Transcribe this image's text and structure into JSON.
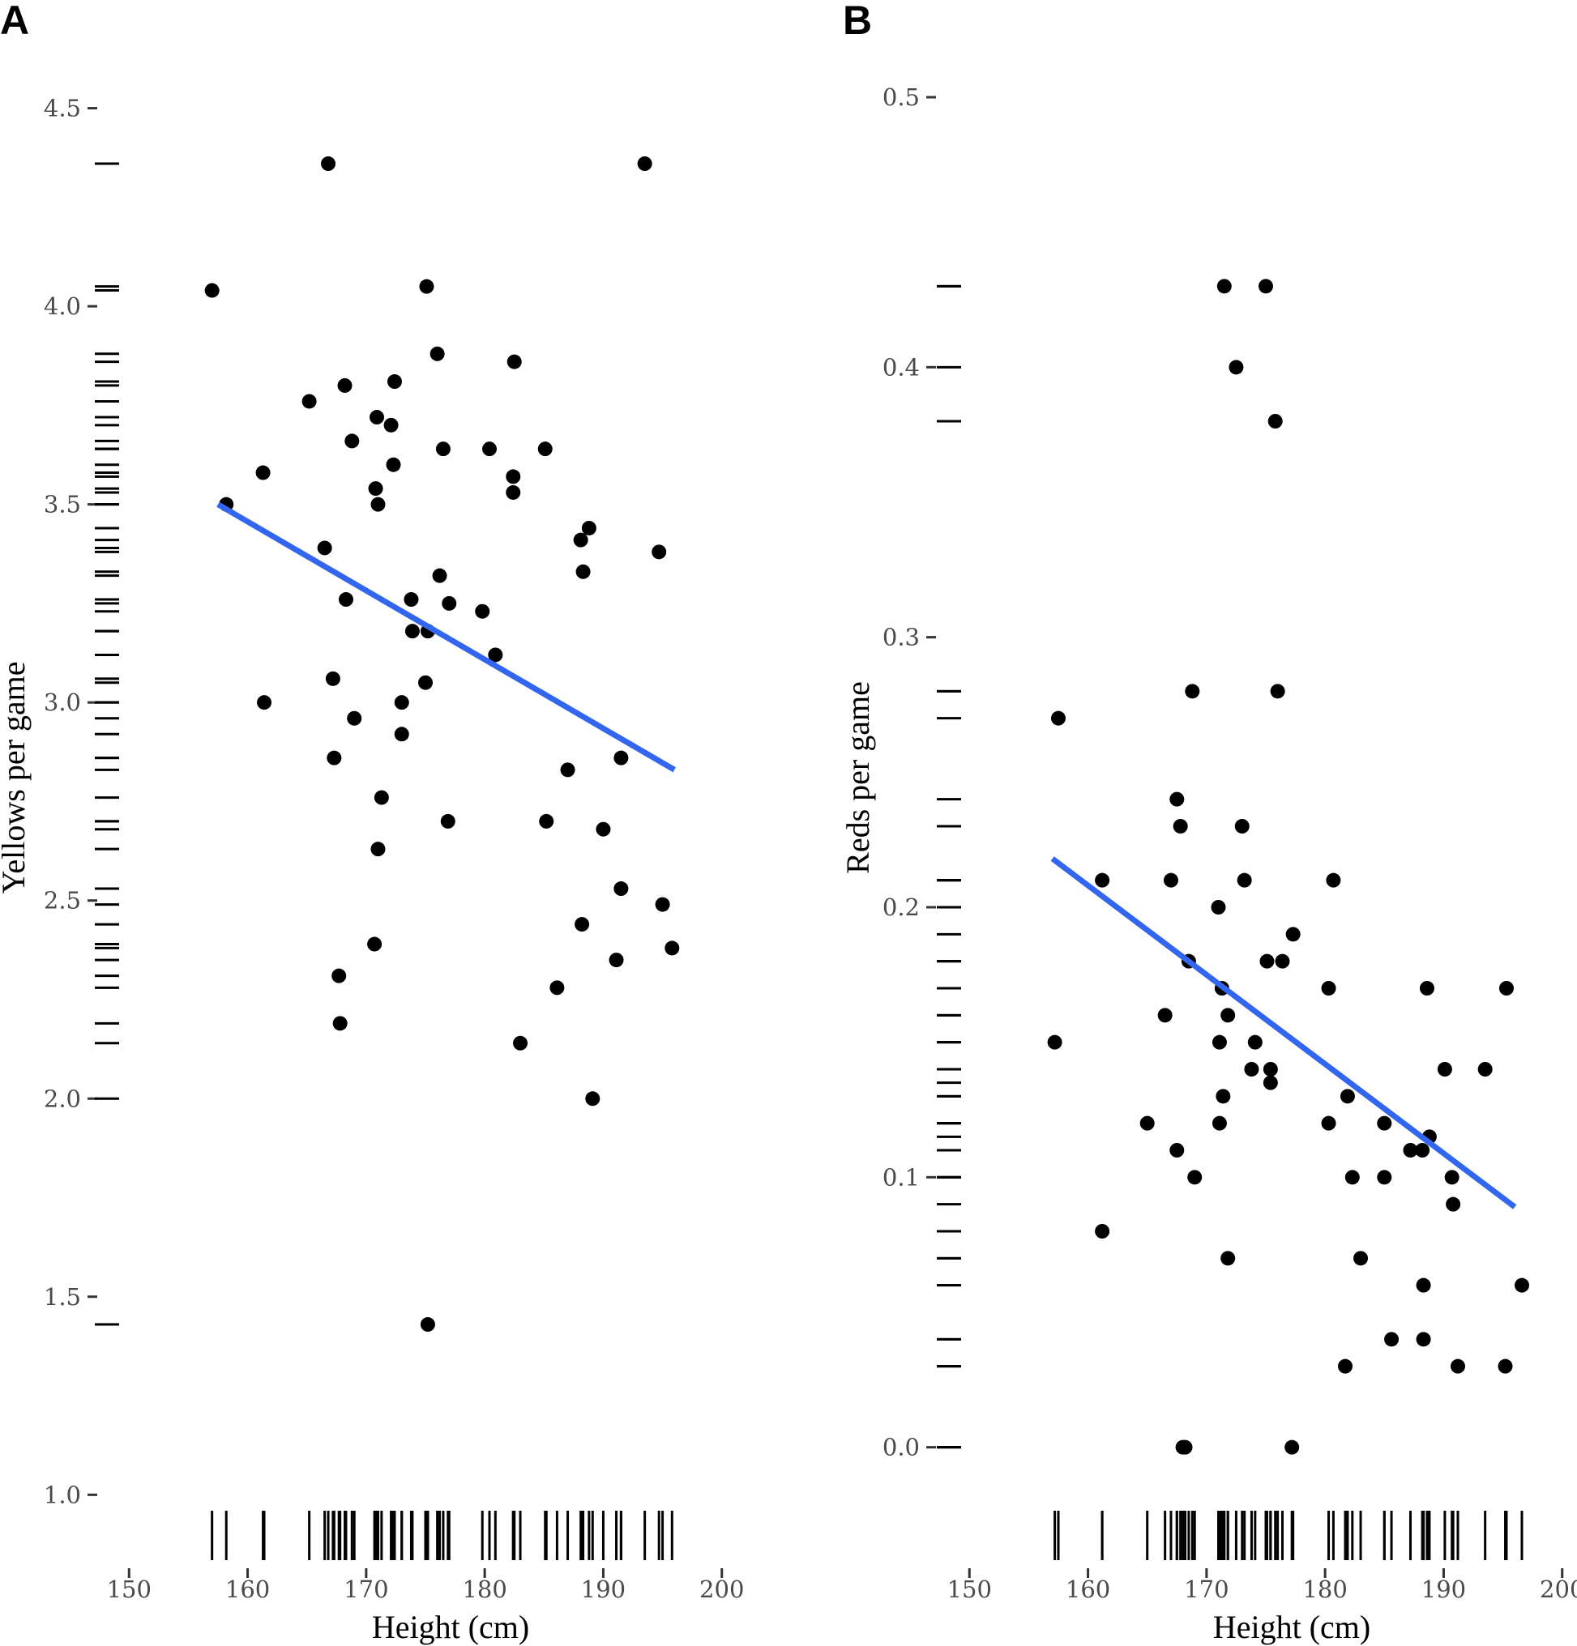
{
  "chart_data": [
    {
      "panel": "A",
      "type": "scatter",
      "xlabel": "Height (cm)",
      "ylabel": "Yellows per game",
      "xlim": [
        148,
        202
      ],
      "ylim": [
        0.97,
        4.63
      ],
      "xticks": [
        150,
        160,
        170,
        180,
        190,
        200
      ],
      "yticks": [
        1.0,
        1.5,
        2.0,
        2.5,
        3.0,
        3.5,
        4.0,
        4.5
      ],
      "xtick_labels": [
        "150",
        "160",
        "170",
        "180",
        "190",
        "200"
      ],
      "ytick_labels": [
        "1.0",
        "1.5",
        "2.0",
        "2.5",
        "3.0",
        "3.5",
        "4.0",
        "4.5"
      ],
      "grid": false,
      "rug": true,
      "points": [
        [
          157,
          4.04
        ],
        [
          158.2,
          3.5
        ],
        [
          161.3,
          3.58
        ],
        [
          161.4,
          3.0
        ],
        [
          165.2,
          3.76
        ],
        [
          166.5,
          3.39
        ],
        [
          166.8,
          4.36
        ],
        [
          167.2,
          3.06
        ],
        [
          167.3,
          2.86
        ],
        [
          167.7,
          2.31
        ],
        [
          167.8,
          2.19
        ],
        [
          168.2,
          3.8
        ],
        [
          168.3,
          3.26
        ],
        [
          168.8,
          3.66
        ],
        [
          169,
          2.96
        ],
        [
          170.7,
          2.39
        ],
        [
          170.8,
          3.54
        ],
        [
          170.9,
          3.72
        ],
        [
          171,
          3.5
        ],
        [
          171,
          2.63
        ],
        [
          171.3,
          2.76
        ],
        [
          172.1,
          3.7
        ],
        [
          172.3,
          3.6
        ],
        [
          172.4,
          3.81
        ],
        [
          173,
          3.0
        ],
        [
          173,
          2.92
        ],
        [
          173.8,
          3.26
        ],
        [
          173.9,
          3.18
        ],
        [
          175,
          3.05
        ],
        [
          175.1,
          4.05
        ],
        [
          175.2,
          3.18
        ],
        [
          175.2,
          1.43
        ],
        [
          176,
          3.88
        ],
        [
          176.2,
          3.32
        ],
        [
          176.5,
          3.64
        ],
        [
          177,
          3.25
        ],
        [
          176.9,
          2.7
        ],
        [
          179.8,
          3.23
        ],
        [
          180.4,
          3.64
        ],
        [
          180.9,
          3.12
        ],
        [
          182.4,
          3.57
        ],
        [
          182.4,
          3.53
        ],
        [
          182.5,
          3.86
        ],
        [
          183,
          2.14
        ],
        [
          185.1,
          3.64
        ],
        [
          185.2,
          2.7
        ],
        [
          186.1,
          2.28
        ],
        [
          187,
          2.83
        ],
        [
          188.1,
          3.41
        ],
        [
          188.2,
          2.44
        ],
        [
          188.3,
          3.33
        ],
        [
          188.8,
          3.44
        ],
        [
          189.1,
          2.0
        ],
        [
          190,
          2.68
        ],
        [
          191.1,
          2.35
        ],
        [
          191.5,
          2.86
        ],
        [
          191.5,
          2.53
        ],
        [
          193.5,
          4.36
        ],
        [
          194.7,
          3.38
        ],
        [
          195,
          2.49
        ],
        [
          195.8,
          2.38
        ]
      ],
      "fit_line": {
        "x": [
          157.5,
          196
        ],
        "y": [
          3.5,
          2.83
        ],
        "color": "#3366ee"
      }
    },
    {
      "panel": "B",
      "type": "scatter",
      "xlabel": "Height (cm)",
      "ylabel": "Reds per game",
      "xlim": [
        148,
        202
      ],
      "ylim": [
        -0.022,
        0.515
      ],
      "xticks": [
        150,
        160,
        170,
        180,
        190,
        200
      ],
      "yticks": [
        0.0,
        0.1,
        0.2,
        0.3,
        0.4,
        0.5
      ],
      "xtick_labels": [
        "150",
        "160",
        "170",
        "180",
        "190",
        "200"
      ],
      "ytick_labels": [
        "0.0",
        "0.1",
        "0.2",
        "0.3",
        "0.4",
        "0.5"
      ],
      "grid": false,
      "rug": true,
      "points": [
        [
          157.2,
          0.15
        ],
        [
          157.5,
          0.27
        ],
        [
          161.2,
          0.21
        ],
        [
          161.2,
          0.08
        ],
        [
          165,
          0.12
        ],
        [
          166.5,
          0.16
        ],
        [
          167,
          0.21
        ],
        [
          167.5,
          0.24
        ],
        [
          167.5,
          0.11
        ],
        [
          167.8,
          0.23
        ],
        [
          168,
          0.0
        ],
        [
          168.2,
          0.0
        ],
        [
          168.5,
          0.18
        ],
        [
          168.8,
          0.28
        ],
        [
          169,
          0.1
        ],
        [
          171,
          0.2
        ],
        [
          171.1,
          0.15
        ],
        [
          171.1,
          0.12
        ],
        [
          171.3,
          0.17
        ],
        [
          171.4,
          0.13
        ],
        [
          171.5,
          0.43
        ],
        [
          171.8,
          0.07
        ],
        [
          171.8,
          0.16
        ],
        [
          172.5,
          0.4
        ],
        [
          173,
          0.23
        ],
        [
          173.2,
          0.21
        ],
        [
          173.8,
          0.14
        ],
        [
          174.1,
          0.15
        ],
        [
          175,
          0.43
        ],
        [
          175.1,
          0.18
        ],
        [
          175.4,
          0.14
        ],
        [
          175.4,
          0.135
        ],
        [
          175.8,
          0.38
        ],
        [
          176,
          0.28
        ],
        [
          176.4,
          0.18
        ],
        [
          177.2,
          0.0
        ],
        [
          177.3,
          0.19
        ],
        [
          180.3,
          0.17
        ],
        [
          180.3,
          0.12
        ],
        [
          180.7,
          0.21
        ],
        [
          181.7,
          0.03
        ],
        [
          181.9,
          0.13
        ],
        [
          182.3,
          0.1
        ],
        [
          183,
          0.07
        ],
        [
          185,
          0.1
        ],
        [
          185,
          0.12
        ],
        [
          185.6,
          0.04
        ],
        [
          187.2,
          0.11
        ],
        [
          188.2,
          0.11
        ],
        [
          188.3,
          0.06
        ],
        [
          188.3,
          0.04
        ],
        [
          188.6,
          0.17
        ],
        [
          188.8,
          0.115
        ],
        [
          190.1,
          0.14
        ],
        [
          190.7,
          0.1
        ],
        [
          190.8,
          0.09
        ],
        [
          191.2,
          0.03
        ],
        [
          193.5,
          0.14
        ],
        [
          195.2,
          0.03
        ],
        [
          195.3,
          0.17
        ],
        [
          196.6,
          0.06
        ]
      ],
      "fit_line": {
        "x": [
          157,
          196
        ],
        "y": [
          0.218,
          0.089
        ],
        "color": "#3366ee"
      }
    }
  ]
}
